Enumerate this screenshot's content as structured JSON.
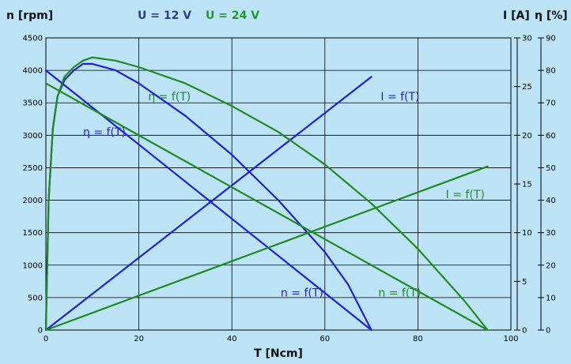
{
  "chart_data": {
    "type": "line",
    "legend": {
      "placement": "top",
      "entries": [
        {
          "label": "U = 12 V",
          "color": "#2f3a9a"
        },
        {
          "label": "U = 24 V",
          "color": "#1e9a2a"
        }
      ]
    },
    "x_axis": {
      "label": "T [Ncm]",
      "range": [
        0,
        100
      ],
      "ticks": [
        "0",
        "20",
        "40",
        "60",
        "80",
        "100"
      ]
    },
    "y_axes": {
      "left": {
        "label": "n [rpm]",
        "range": [
          0,
          4500
        ],
        "ticks": [
          "0",
          "500",
          "1000",
          "1500",
          "2000",
          "2500",
          "3000",
          "3500",
          "4000",
          "4500"
        ]
      },
      "current": {
        "label": "I [A]",
        "range": [
          0,
          30
        ],
        "ticks": [
          "0",
          "5",
          "10",
          "15",
          "20",
          "25",
          "30"
        ]
      },
      "efficiency": {
        "label": "η [%]",
        "range": [
          0,
          90
        ],
        "ticks": [
          "0",
          "10",
          "20",
          "30",
          "40",
          "50",
          "60",
          "70",
          "80",
          "90"
        ]
      }
    },
    "grid": true,
    "series": [
      {
        "voltage": "U = 12 V",
        "quantity": "n",
        "axis": "left",
        "color": "#1f1fe0",
        "x": [
          0,
          70
        ],
        "y": [
          4000,
          0
        ]
      },
      {
        "voltage": "U = 12 V",
        "quantity": "I",
        "axis": "current",
        "color": "#1f1fe0",
        "x": [
          0,
          70
        ],
        "y": [
          0,
          26
        ]
      },
      {
        "voltage": "U = 12 V",
        "quantity": "η",
        "axis": "efficiency",
        "color": "#1f1fe0",
        "x": [
          0,
          0.6,
          1.5,
          2.5,
          4,
          6,
          8,
          10,
          15,
          20,
          30,
          40,
          50,
          60,
          65,
          70
        ],
        "y": [
          0,
          40,
          62,
          72,
          77,
          80,
          82,
          82,
          80,
          76,
          66,
          54,
          40,
          24,
          14,
          0
        ]
      },
      {
        "voltage": "U = 24 V",
        "quantity": "n",
        "axis": "left",
        "color": "#1e8a22",
        "x": [
          0,
          95
        ],
        "y": [
          3800,
          0
        ]
      },
      {
        "voltage": "U = 24 V",
        "quantity": "I",
        "axis": "current",
        "color": "#1e8a22",
        "x": [
          0,
          95
        ],
        "y": [
          0,
          16.8
        ]
      },
      {
        "voltage": "U = 24 V",
        "quantity": "η",
        "axis": "efficiency",
        "color": "#1e8a22",
        "x": [
          0,
          0.6,
          1.5,
          2.5,
          4,
          6,
          8,
          10,
          15,
          20,
          30,
          40,
          50,
          60,
          70,
          80,
          90,
          95
        ],
        "y": [
          0,
          40,
          62,
          72,
          78,
          81,
          83,
          84,
          83,
          81,
          76,
          69,
          61,
          51,
          39,
          25,
          9,
          0
        ]
      }
    ],
    "curve_labels": [
      {
        "text": "η = f(T)",
        "color": "#1e8a22",
        "at": [
          22,
          3600
        ]
      },
      {
        "text": "η = f(T)",
        "color": "#2222cc",
        "at": [
          8,
          3050
        ]
      },
      {
        "text": "I = f(T)",
        "color": "#2222cc",
        "at": [
          72,
          3600
        ]
      },
      {
        "text": "I = f(T)",
        "color": "#1e8a22",
        "at": [
          86,
          2090
        ]
      },
      {
        "text": "n = f(T)",
        "color": "#2222cc",
        "at": [
          50.5,
          575
        ]
      },
      {
        "text": "n = f(T)",
        "color": "#1e8a22",
        "at": [
          71.5,
          575
        ]
      }
    ]
  }
}
